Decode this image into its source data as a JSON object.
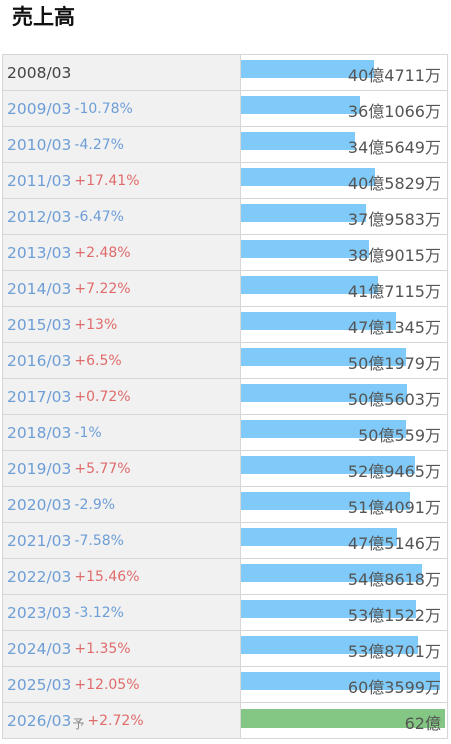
{
  "chart_data": {
    "type": "bar",
    "title": "売上高",
    "unit": "万円",
    "rows": [
      {
        "period": "2008/03",
        "change": "",
        "value": 404711,
        "label": "40億4711万",
        "forecast": false
      },
      {
        "period": "2009/03",
        "change": "-10.78%",
        "value": 361066,
        "label": "36億1066万",
        "forecast": false
      },
      {
        "period": "2010/03",
        "change": "-4.27%",
        "value": 345649,
        "label": "34億5649万",
        "forecast": false
      },
      {
        "period": "2011/03",
        "change": "+17.41%",
        "value": 405829,
        "label": "40億5829万",
        "forecast": false
      },
      {
        "period": "2012/03",
        "change": "-6.47%",
        "value": 379583,
        "label": "37億9583万",
        "forecast": false
      },
      {
        "period": "2013/03",
        "change": "+2.48%",
        "value": 389015,
        "label": "38億9015万",
        "forecast": false
      },
      {
        "period": "2014/03",
        "change": "+7.22%",
        "value": 417115,
        "label": "41億7115万",
        "forecast": false
      },
      {
        "period": "2015/03",
        "change": "+13%",
        "value": 471345,
        "label": "47億1345万",
        "forecast": false
      },
      {
        "period": "2016/03",
        "change": "+6.5%",
        "value": 501979,
        "label": "50億1979万",
        "forecast": false
      },
      {
        "period": "2017/03",
        "change": "+0.72%",
        "value": 505603,
        "label": "50億5603万",
        "forecast": false
      },
      {
        "period": "2018/03",
        "change": "-1%",
        "value": 500559,
        "label": "50億559万",
        "forecast": false
      },
      {
        "period": "2019/03",
        "change": "+5.77%",
        "value": 529465,
        "label": "52億9465万",
        "forecast": false
      },
      {
        "period": "2020/03",
        "change": "-2.9%",
        "value": 514091,
        "label": "51億4091万",
        "forecast": false
      },
      {
        "period": "2021/03",
        "change": "-7.58%",
        "value": 475146,
        "label": "47億5146万",
        "forecast": false
      },
      {
        "period": "2022/03",
        "change": "+15.46%",
        "value": 548618,
        "label": "54億8618万",
        "forecast": false
      },
      {
        "period": "2023/03",
        "change": "-3.12%",
        "value": 531522,
        "label": "53億1522万",
        "forecast": false
      },
      {
        "period": "2024/03",
        "change": "+1.35%",
        "value": 538701,
        "label": "53億8701万",
        "forecast": false
      },
      {
        "period": "2025/03",
        "change": "+12.05%",
        "value": 603599,
        "label": "60億3599万",
        "forecast": false
      },
      {
        "period": "2026/03",
        "forecast_mark": "予",
        "change": "+2.72%",
        "value": 620000,
        "label": "62億",
        "forecast": true
      }
    ],
    "xlim": [
      0,
      620000
    ],
    "colors": {
      "actual": "#7fcaf8",
      "forecast": "#84c784",
      "increase": "#e06b6b",
      "decrease": "#6d9ed6"
    }
  }
}
